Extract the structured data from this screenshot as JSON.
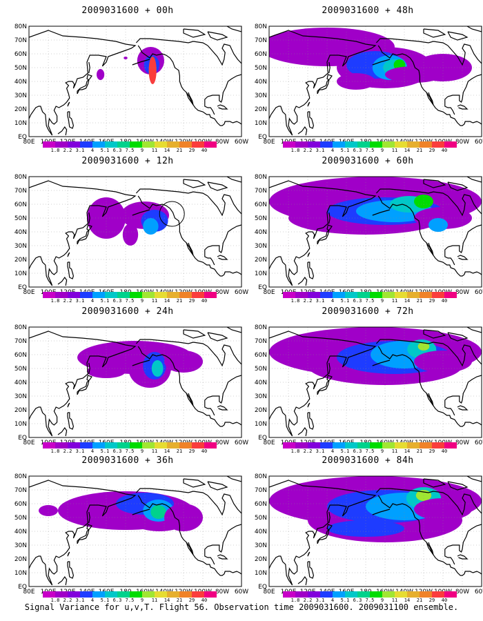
{
  "panels": [
    {
      "title": "2009031600 + 00h"
    },
    {
      "title": "2009031600 + 48h"
    },
    {
      "title": "2009031600 + 12h"
    },
    {
      "title": "2009031600 + 60h"
    },
    {
      "title": "2009031600 + 24h"
    },
    {
      "title": "2009031600 + 72h"
    },
    {
      "title": "2009031600 + 36h"
    },
    {
      "title": "2009031600 + 84h"
    }
  ],
  "lon_labels": [
    "80E",
    "100E",
    "120E",
    "140E",
    "160E",
    "180",
    "160W",
    "140W",
    "120W",
    "100W",
    "80W",
    "60W"
  ],
  "lat_labels": [
    "80N",
    "70N",
    "60N",
    "50N",
    "40N",
    "30N",
    "20N",
    "10N",
    "EQ"
  ],
  "colorbar": {
    "labels": [
      "1.8",
      "2.2",
      "3.1",
      "4",
      "5.1",
      "6.3",
      "7.5",
      "9",
      "11",
      "14",
      "21",
      "29",
      "40"
    ],
    "colors": [
      "#a000c8",
      "#8200dc",
      "#1e3cff",
      "#00a0ff",
      "#00c8c8",
      "#00d28c",
      "#00dc00",
      "#a0e632",
      "#e6dc32",
      "#e6af2d",
      "#f08228",
      "#fa3c3c",
      "#f00082"
    ]
  },
  "footer": "Signal Variance for u,v,T. Flight 56. Observation time 2009031600. 2009031100 ensemble."
}
